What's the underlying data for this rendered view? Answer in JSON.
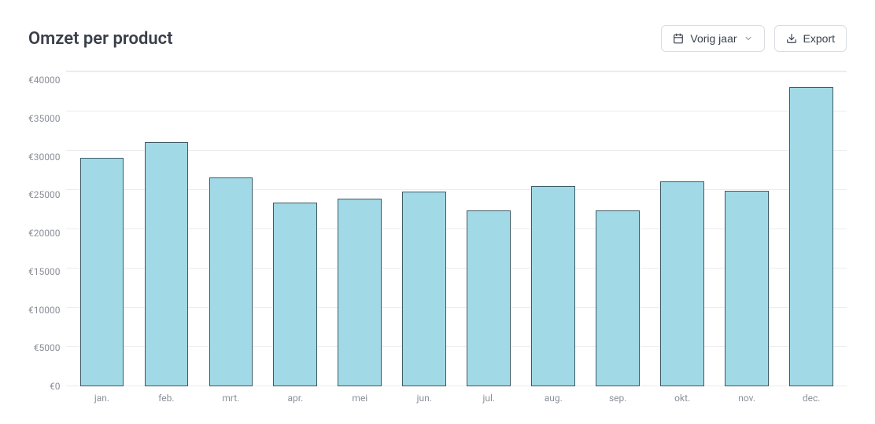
{
  "header": {
    "title": "Omzet per product",
    "period_button": "Vorig jaar",
    "export_button": "Export"
  },
  "chart": {
    "type": "bar",
    "currency_prefix": "€",
    "categories": [
      "jan.",
      "feb.",
      "mrt.",
      "apr.",
      "mei",
      "jun.",
      "jul.",
      "aug.",
      "sep.",
      "okt.",
      "nov.",
      "dec."
    ],
    "values": [
      29000,
      31000,
      26500,
      23300,
      23800,
      24700,
      22300,
      25400,
      22300,
      26000,
      24800,
      38000
    ],
    "ylim": [
      0,
      40000
    ],
    "ytick_step": 5000,
    "yticks": [
      40000,
      35000,
      30000,
      25000,
      20000,
      15000,
      10000,
      5000,
      0
    ],
    "ytick_labels": [
      "€40000",
      "€35000",
      "€30000",
      "€25000",
      "€20000",
      "€15000",
      "€10000",
      "€5000",
      "€0"
    ],
    "bar_color": "#a2d9e7",
    "bar_border_color": "#3d5a66",
    "grid_color": "#ececf0",
    "background_color": "#ffffff",
    "axis_label_color": "#8b8f98",
    "axis_fontsize": 12,
    "title_color": "#3a3f4a",
    "title_fontsize": 22,
    "bar_width_ratio": 0.68
  }
}
